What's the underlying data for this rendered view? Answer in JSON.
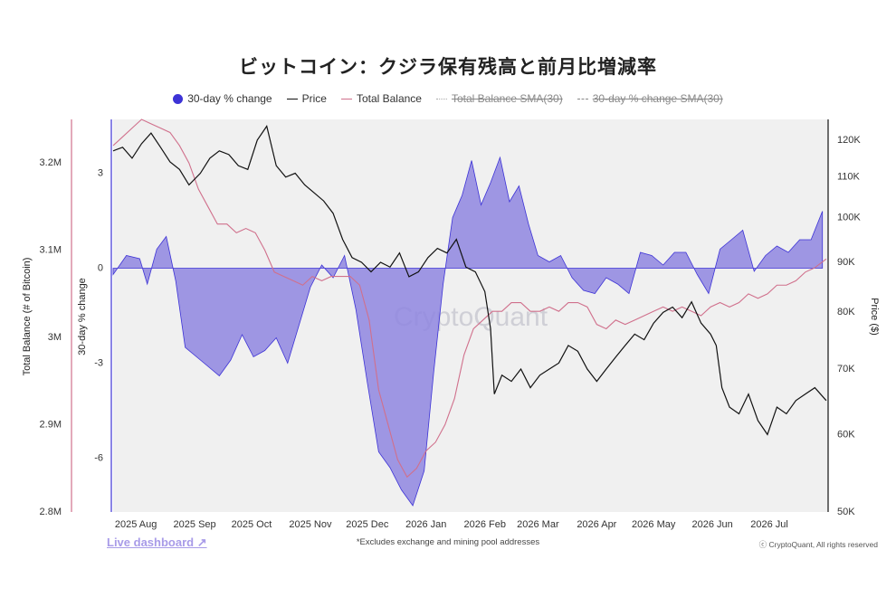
{
  "title": "ビットコイン：クジラ保有残高と前月比増減率",
  "legend": [
    {
      "label": "30-day % change",
      "icon": "dot",
      "active": true
    },
    {
      "label": "Price",
      "icon": "line-black",
      "active": true
    },
    {
      "label": "Total Balance",
      "icon": "line-pink",
      "active": true
    },
    {
      "label": "Total Balance SMA(30)",
      "icon": "line-dotted",
      "active": false
    },
    {
      "label": "30-day % change SMA(30)",
      "icon": "line-dashed",
      "active": false
    }
  ],
  "colors": {
    "change": "#3d33d6",
    "change_fill": "#8f86e0",
    "price": "#111111",
    "balance": "#d0708c",
    "plot_bg": "#f0f0f0"
  },
  "watermark": "CryptoQuant",
  "footer": {
    "link": "Live dashboard ↗",
    "note": "*Excludes exchange and mining pool addresses",
    "copyright": "ⓒ CryptoQuant, All rights reserved"
  },
  "chart_data": {
    "type": "line",
    "x_ticks": [
      "2025 Aug",
      "2025 Sep",
      "2025 Oct",
      "2025 Nov",
      "2025 Dec",
      "2026 Jan",
      "2026 Feb",
      "2026 Mar",
      "2026 Apr",
      "2026 May",
      "2026 Jun",
      "2026 Jul"
    ],
    "x_range": [
      "2025-07-20",
      "2026-08-01"
    ],
    "axes": {
      "left_outer": {
        "label": "Total Balance (# of Bitcoin)",
        "ticks": [
          "2.8M",
          "2.9M",
          "3M",
          "3.1M",
          "3.2M"
        ],
        "range": [
          2.8,
          3.25
        ],
        "unit": "M"
      },
      "left_inner": {
        "label": "30-day % change",
        "ticks": [
          "-6",
          "-3",
          "0",
          "3"
        ],
        "range": [
          -7.7,
          4.7
        ]
      },
      "right": {
        "label": "Price ($)",
        "ticks": [
          "50K",
          "60K",
          "70K",
          "80K",
          "90K",
          "100K",
          "110K",
          "120K"
        ],
        "range": [
          50,
          126
        ],
        "unit": "K",
        "scale": "log"
      }
    },
    "series": [
      {
        "name": "30-day % change",
        "axis": "left_inner",
        "style": "area",
        "x": [
          "2025-07-20",
          "2025-07-27",
          "2025-08-03",
          "2025-08-07",
          "2025-08-12",
          "2025-08-17",
          "2025-08-22",
          "2025-08-27",
          "2025-09-02",
          "2025-09-08",
          "2025-09-14",
          "2025-09-20",
          "2025-09-26",
          "2025-10-02",
          "2025-10-08",
          "2025-10-14",
          "2025-10-20",
          "2025-10-26",
          "2025-11-01",
          "2025-11-07",
          "2025-11-13",
          "2025-11-19",
          "2025-11-25",
          "2025-12-01",
          "2025-12-07",
          "2025-12-13",
          "2025-12-19",
          "2025-12-25",
          "2025-12-31",
          "2026-01-05",
          "2026-01-10",
          "2026-01-15",
          "2026-01-20",
          "2026-01-25",
          "2026-01-30",
          "2026-02-04",
          "2026-02-09",
          "2026-02-14",
          "2026-02-19",
          "2026-02-24",
          "2026-03-01",
          "2026-03-07",
          "2026-03-13",
          "2026-03-19",
          "2026-03-25",
          "2026-03-31",
          "2026-04-06",
          "2026-04-12",
          "2026-04-18",
          "2026-04-24",
          "2026-04-30",
          "2026-05-06",
          "2026-05-12",
          "2026-05-18",
          "2026-05-24",
          "2026-05-30",
          "2026-06-05",
          "2026-06-11",
          "2026-06-17",
          "2026-06-23",
          "2026-06-29",
          "2026-07-05",
          "2026-07-11",
          "2026-07-17",
          "2026-07-23",
          "2026-07-29"
        ],
        "values": [
          -0.2,
          0.4,
          0.3,
          -0.5,
          0.6,
          1.0,
          -0.4,
          -2.5,
          -2.8,
          -3.1,
          -3.4,
          -2.9,
          -2.1,
          -2.8,
          -2.6,
          -2.2,
          -3.0,
          -1.8,
          -0.6,
          0.1,
          -0.3,
          0.4,
          -1.3,
          -3.6,
          -5.8,
          -6.3,
          -7.0,
          -7.5,
          -6.4,
          -3.3,
          -0.5,
          1.6,
          2.3,
          3.4,
          2.0,
          2.7,
          3.5,
          2.1,
          2.6,
          1.4,
          0.4,
          0.2,
          0.4,
          -0.3,
          -0.7,
          -0.8,
          -0.3,
          -0.5,
          -0.8,
          0.5,
          0.4,
          0.1,
          0.5,
          0.5,
          -0.2,
          -0.8,
          0.6,
          0.9,
          1.2,
          -0.1,
          0.4,
          0.7,
          0.5,
          0.9,
          0.9,
          1.8
        ]
      },
      {
        "name": "Price",
        "axis": "right",
        "style": "line",
        "x": [
          "2025-07-20",
          "2025-07-25",
          "2025-07-30",
          "2025-08-04",
          "2025-08-09",
          "2025-08-14",
          "2025-08-19",
          "2025-08-24",
          "2025-08-29",
          "2025-09-04",
          "2025-09-09",
          "2025-09-14",
          "2025-09-19",
          "2025-09-24",
          "2025-09-29",
          "2025-10-04",
          "2025-10-09",
          "2025-10-14",
          "2025-10-19",
          "2025-10-24",
          "2025-10-29",
          "2025-11-03",
          "2025-11-08",
          "2025-11-13",
          "2025-11-18",
          "2025-11-23",
          "2025-11-28",
          "2025-12-03",
          "2025-12-08",
          "2025-12-13",
          "2025-12-18",
          "2025-12-23",
          "2025-12-28",
          "2026-01-02",
          "2026-01-07",
          "2026-01-12",
          "2026-01-17",
          "2026-01-22",
          "2026-01-27",
          "2026-02-01",
          "2026-02-04",
          "2026-02-06",
          "2026-02-10",
          "2026-02-15",
          "2026-02-20",
          "2026-02-25",
          "2026-03-02",
          "2026-03-07",
          "2026-03-12",
          "2026-03-17",
          "2026-03-22",
          "2026-03-27",
          "2026-04-01",
          "2026-04-06",
          "2026-04-11",
          "2026-04-16",
          "2026-04-21",
          "2026-04-26",
          "2026-05-01",
          "2026-05-06",
          "2026-05-11",
          "2026-05-16",
          "2026-05-21",
          "2026-05-26",
          "2026-05-31",
          "2026-06-03",
          "2026-06-06",
          "2026-06-10",
          "2026-06-15",
          "2026-06-20",
          "2026-06-25",
          "2026-06-30",
          "2026-07-05",
          "2026-07-10",
          "2026-07-15",
          "2026-07-20",
          "2026-07-25",
          "2026-07-31"
        ],
        "values": [
          117,
          118,
          115,
          119,
          122,
          118,
          114,
          112,
          108,
          111,
          115,
          117,
          116,
          113,
          112,
          120,
          124,
          113,
          110,
          111,
          108,
          106,
          104,
          101,
          95,
          91,
          90,
          88,
          90,
          89,
          92,
          87,
          88,
          91,
          93,
          92,
          95,
          89,
          88,
          84,
          77,
          66,
          69,
          68,
          70,
          67,
          69,
          70,
          71,
          74,
          73,
          70,
          68,
          70,
          72,
          74,
          76,
          75,
          78,
          80,
          81,
          79,
          82,
          78,
          76,
          74,
          67,
          64,
          63,
          66,
          62,
          60,
          64,
          63,
          65,
          66,
          67,
          65
        ]
      },
      {
        "name": "Total Balance",
        "axis": "left_outer",
        "style": "line",
        "x": [
          "2025-07-20",
          "2025-07-25",
          "2025-07-30",
          "2025-08-04",
          "2025-08-09",
          "2025-08-14",
          "2025-08-19",
          "2025-08-24",
          "2025-08-29",
          "2025-09-03",
          "2025-09-08",
          "2025-09-13",
          "2025-09-18",
          "2025-09-23",
          "2025-09-28",
          "2025-10-03",
          "2025-10-08",
          "2025-10-13",
          "2025-10-18",
          "2025-10-23",
          "2025-10-28",
          "2025-11-02",
          "2025-11-07",
          "2025-11-12",
          "2025-11-17",
          "2025-11-22",
          "2025-11-27",
          "2025-12-02",
          "2025-12-07",
          "2025-12-12",
          "2025-12-17",
          "2025-12-22",
          "2025-12-27",
          "2026-01-01",
          "2026-01-06",
          "2026-01-11",
          "2026-01-16",
          "2026-01-21",
          "2026-01-26",
          "2026-01-31",
          "2026-02-05",
          "2026-02-10",
          "2026-02-15",
          "2026-02-20",
          "2026-02-25",
          "2026-03-02",
          "2026-03-07",
          "2026-03-12",
          "2026-03-17",
          "2026-03-22",
          "2026-03-27",
          "2026-04-01",
          "2026-04-06",
          "2026-04-11",
          "2026-04-16",
          "2026-04-21",
          "2026-04-26",
          "2026-05-01",
          "2026-05-06",
          "2026-05-11",
          "2026-05-16",
          "2026-05-21",
          "2026-05-26",
          "2026-05-31",
          "2026-06-05",
          "2026-06-10",
          "2026-06-15",
          "2026-06-20",
          "2026-06-25",
          "2026-06-30",
          "2026-07-05",
          "2026-07-10",
          "2026-07-15",
          "2026-07-20",
          "2026-07-25",
          "2026-07-31"
        ],
        "values": [
          3.22,
          3.23,
          3.24,
          3.25,
          3.245,
          3.24,
          3.235,
          3.22,
          3.2,
          3.17,
          3.15,
          3.13,
          3.13,
          3.12,
          3.125,
          3.12,
          3.1,
          3.075,
          3.07,
          3.065,
          3.06,
          3.07,
          3.065,
          3.07,
          3.07,
          3.07,
          3.06,
          3.02,
          2.94,
          2.9,
          2.86,
          2.84,
          2.85,
          2.87,
          2.88,
          2.9,
          2.93,
          2.98,
          3.01,
          3.02,
          3.03,
          3.03,
          3.04,
          3.04,
          3.03,
          3.03,
          3.035,
          3.03,
          3.04,
          3.04,
          3.035,
          3.015,
          3.01,
          3.02,
          3.015,
          3.02,
          3.025,
          3.03,
          3.035,
          3.03,
          3.035,
          3.03,
          3.025,
          3.035,
          3.04,
          3.035,
          3.04,
          3.05,
          3.045,
          3.05,
          3.06,
          3.06,
          3.065,
          3.075,
          3.08,
          3.09
        ]
      }
    ],
    "grid": false,
    "legend_position": "top-center"
  }
}
